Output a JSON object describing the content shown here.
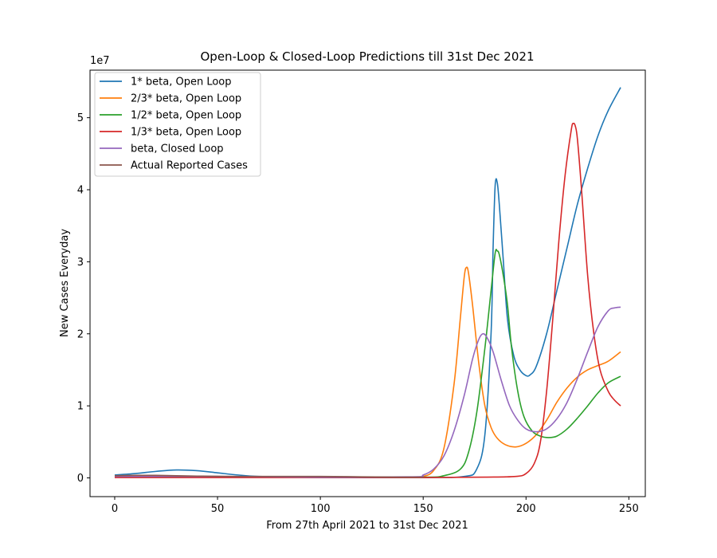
{
  "chart_data": {
    "type": "line",
    "title": "Open-Loop & Closed-Loop Predictions till 31st Dec 2021",
    "xlabel": "From 27th April 2021 to 31st Dec 2021",
    "ylabel": "New Cases Everyday",
    "y_offset_label": "1e7",
    "xlim": [
      -12,
      258
    ],
    "ylim": [
      -2.6,
      56.6
    ],
    "y_scale_note": "values in units of 1e7 / 10",
    "x_ticks": [
      0,
      50,
      100,
      150,
      200,
      250
    ],
    "y_ticks": [
      {
        "value": 0,
        "label": "0"
      },
      {
        "value": 10,
        "label": "1"
      },
      {
        "value": 20,
        "label": "2"
      },
      {
        "value": 30,
        "label": "3"
      },
      {
        "value": 40,
        "label": "4"
      },
      {
        "value": 50,
        "label": "5"
      }
    ],
    "grid": false,
    "legend_position": "top-left",
    "series": [
      {
        "name": "1* beta, Open Loop",
        "color": "#1f77b4",
        "points": [
          [
            0,
            0.4
          ],
          [
            10,
            0.6
          ],
          [
            20,
            0.9
          ],
          [
            30,
            1.1
          ],
          [
            40,
            1.0
          ],
          [
            50,
            0.7
          ],
          [
            60,
            0.4
          ],
          [
            70,
            0.2
          ],
          [
            100,
            0.05
          ],
          [
            150,
            0.05
          ],
          [
            170,
            0.2
          ],
          [
            176,
            1.2
          ],
          [
            180,
            6
          ],
          [
            183,
            20
          ],
          [
            184,
            32
          ],
          [
            185,
            40.6
          ],
          [
            186,
            41.0
          ],
          [
            187,
            38
          ],
          [
            189,
            30
          ],
          [
            191,
            22
          ],
          [
            194,
            17
          ],
          [
            197,
            15
          ],
          [
            200,
            14.2
          ],
          [
            202,
            14.3
          ],
          [
            205,
            15.5
          ],
          [
            210,
            20
          ],
          [
            215,
            26
          ],
          [
            220,
            32
          ],
          [
            225,
            38
          ],
          [
            230,
            43
          ],
          [
            235,
            47.5
          ],
          [
            240,
            51
          ],
          [
            246,
            54.2
          ]
        ]
      },
      {
        "name": "2/3* beta, Open Loop",
        "color": "#ff7f0e",
        "points": [
          [
            0,
            0.1
          ],
          [
            50,
            0.1
          ],
          [
            100,
            0.1
          ],
          [
            145,
            0.1
          ],
          [
            150,
            0.2
          ],
          [
            155,
            1.0
          ],
          [
            160,
            4
          ],
          [
            165,
            13
          ],
          [
            168,
            22
          ],
          [
            170,
            28
          ],
          [
            171,
            29.2
          ],
          [
            172,
            28.5
          ],
          [
            174,
            24
          ],
          [
            177,
            16
          ],
          [
            180,
            10
          ],
          [
            183,
            7
          ],
          [
            186,
            5.5
          ],
          [
            190,
            4.6
          ],
          [
            195,
            4.3
          ],
          [
            200,
            4.8
          ],
          [
            205,
            6
          ],
          [
            210,
            8
          ],
          [
            215,
            10.5
          ],
          [
            220,
            12.5
          ],
          [
            225,
            14
          ],
          [
            230,
            15
          ],
          [
            235,
            15.6
          ],
          [
            240,
            16.2
          ],
          [
            246,
            17.5
          ]
        ]
      },
      {
        "name": "1/2* beta, Open Loop",
        "color": "#2ca02c",
        "points": [
          [
            0,
            0.1
          ],
          [
            50,
            0.1
          ],
          [
            100,
            0.1
          ],
          [
            150,
            0.1
          ],
          [
            160,
            0.3
          ],
          [
            168,
            1.2
          ],
          [
            172,
            3.5
          ],
          [
            176,
            9
          ],
          [
            180,
            18
          ],
          [
            183,
            26
          ],
          [
            185,
            31.2
          ],
          [
            186,
            31.5
          ],
          [
            187,
            31
          ],
          [
            189,
            28
          ],
          [
            191,
            24
          ],
          [
            193,
            18
          ],
          [
            196,
            12
          ],
          [
            199,
            8.5
          ],
          [
            203,
            6.5
          ],
          [
            207,
            5.8
          ],
          [
            211,
            5.6
          ],
          [
            215,
            5.8
          ],
          [
            220,
            6.8
          ],
          [
            225,
            8.3
          ],
          [
            230,
            10
          ],
          [
            235,
            11.8
          ],
          [
            240,
            13.2
          ],
          [
            246,
            14.1
          ]
        ]
      },
      {
        "name": "1/3* beta, Open Loop",
        "color": "#d62728",
        "points": [
          [
            0,
            0.05
          ],
          [
            50,
            0.05
          ],
          [
            100,
            0.05
          ],
          [
            150,
            0.05
          ],
          [
            180,
            0.1
          ],
          [
            195,
            0.2
          ],
          [
            200,
            0.6
          ],
          [
            204,
            2
          ],
          [
            207,
            5
          ],
          [
            210,
            12
          ],
          [
            213,
            22
          ],
          [
            216,
            33
          ],
          [
            219,
            42
          ],
          [
            222,
            48.3
          ],
          [
            223,
            49.2
          ],
          [
            224,
            48.8
          ],
          [
            225,
            47
          ],
          [
            227,
            40
          ],
          [
            230,
            28
          ],
          [
            233,
            20
          ],
          [
            236,
            15
          ],
          [
            240,
            12
          ],
          [
            243,
            10.8
          ],
          [
            246,
            10.0
          ]
        ]
      },
      {
        "name": "beta, Closed Loop",
        "color": "#9467bd",
        "points": [
          [
            0,
            0.2
          ],
          [
            50,
            0.2
          ],
          [
            100,
            0.1
          ],
          [
            145,
            0.15
          ],
          [
            150,
            0.4
          ],
          [
            155,
            1.2
          ],
          [
            160,
            3
          ],
          [
            165,
            6.5
          ],
          [
            170,
            11.5
          ],
          [
            174,
            16.5
          ],
          [
            177,
            19.2
          ],
          [
            179,
            20
          ],
          [
            181,
            19.5
          ],
          [
            184,
            17.5
          ],
          [
            188,
            13.5
          ],
          [
            192,
            10
          ],
          [
            196,
            8
          ],
          [
            200,
            6.8
          ],
          [
            205,
            6.4
          ],
          [
            210,
            6.8
          ],
          [
            215,
            8.2
          ],
          [
            220,
            10.5
          ],
          [
            225,
            13.8
          ],
          [
            230,
            17.5
          ],
          [
            235,
            21
          ],
          [
            240,
            23.2
          ],
          [
            243,
            23.6
          ],
          [
            246,
            23.7
          ]
        ]
      },
      {
        "name": "Actual Reported Cases",
        "color": "#8c564b",
        "points": [
          [
            0,
            0.3
          ],
          [
            10,
            0.35
          ],
          [
            20,
            0.35
          ],
          [
            30,
            0.3
          ],
          [
            40,
            0.25
          ],
          [
            60,
            0.2
          ],
          [
            80,
            0.2
          ],
          [
            100,
            0.2
          ],
          [
            120,
            0.15
          ],
          [
            140,
            0.1
          ],
          [
            150,
            0.1
          ]
        ]
      }
    ]
  }
}
